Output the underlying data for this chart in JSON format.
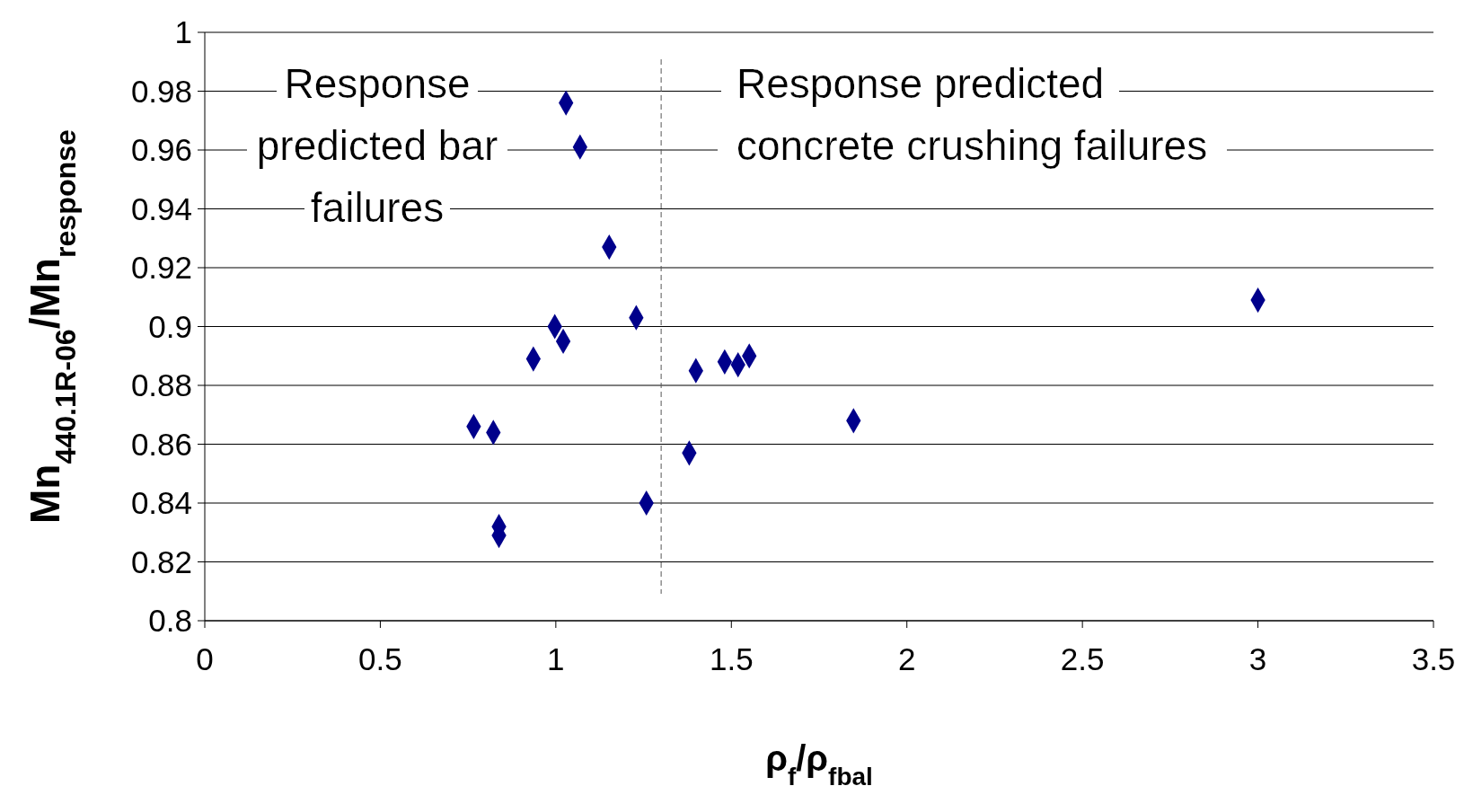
{
  "chart_data": {
    "type": "scatter",
    "xlabel": "ρ$_{f}$/ρ$_{fbal}$",
    "ylabel": "Mn$_{440.1R-06}$/Mn$_{response}$",
    "x": [
      0.766,
      0.822,
      0.838,
      0.838,
      0.936,
      0.997,
      1.021,
      1.029,
      1.069,
      1.152,
      1.229,
      1.258,
      1.38,
      1.399,
      1.481,
      1.519,
      1.551,
      1.848,
      3.0
    ],
    "series": [
      {
        "color": "#00008b",
        "values": [
          0.866,
          0.864,
          0.832,
          0.829,
          0.889,
          0.9,
          0.895,
          0.976,
          0.961,
          0.927,
          0.903,
          0.84,
          0.857,
          0.885,
          0.888,
          0.887,
          0.89,
          0.868,
          0.909
        ]
      }
    ],
    "xlim": [
      0,
      3.5
    ],
    "xticks": [
      0,
      0.5,
      1,
      1.5,
      2,
      2.5,
      3,
      3.5
    ],
    "ylim": [
      0.8,
      1
    ],
    "yticks": [
      0.8,
      0.82,
      0.84,
      0.86,
      0.88,
      0.9,
      0.92,
      0.94,
      0.96,
      0.98,
      1
    ],
    "grid": "y",
    "marker": "diamond",
    "ref_lines": [
      {
        "axis": "x",
        "value": 1.3,
        "line_style": "dashed",
        "color": "#555555"
      }
    ],
    "annotations": [
      "Response\npredicted bar\nfailures",
      "Response predicted\nconcrete crushing failures"
    ]
  }
}
